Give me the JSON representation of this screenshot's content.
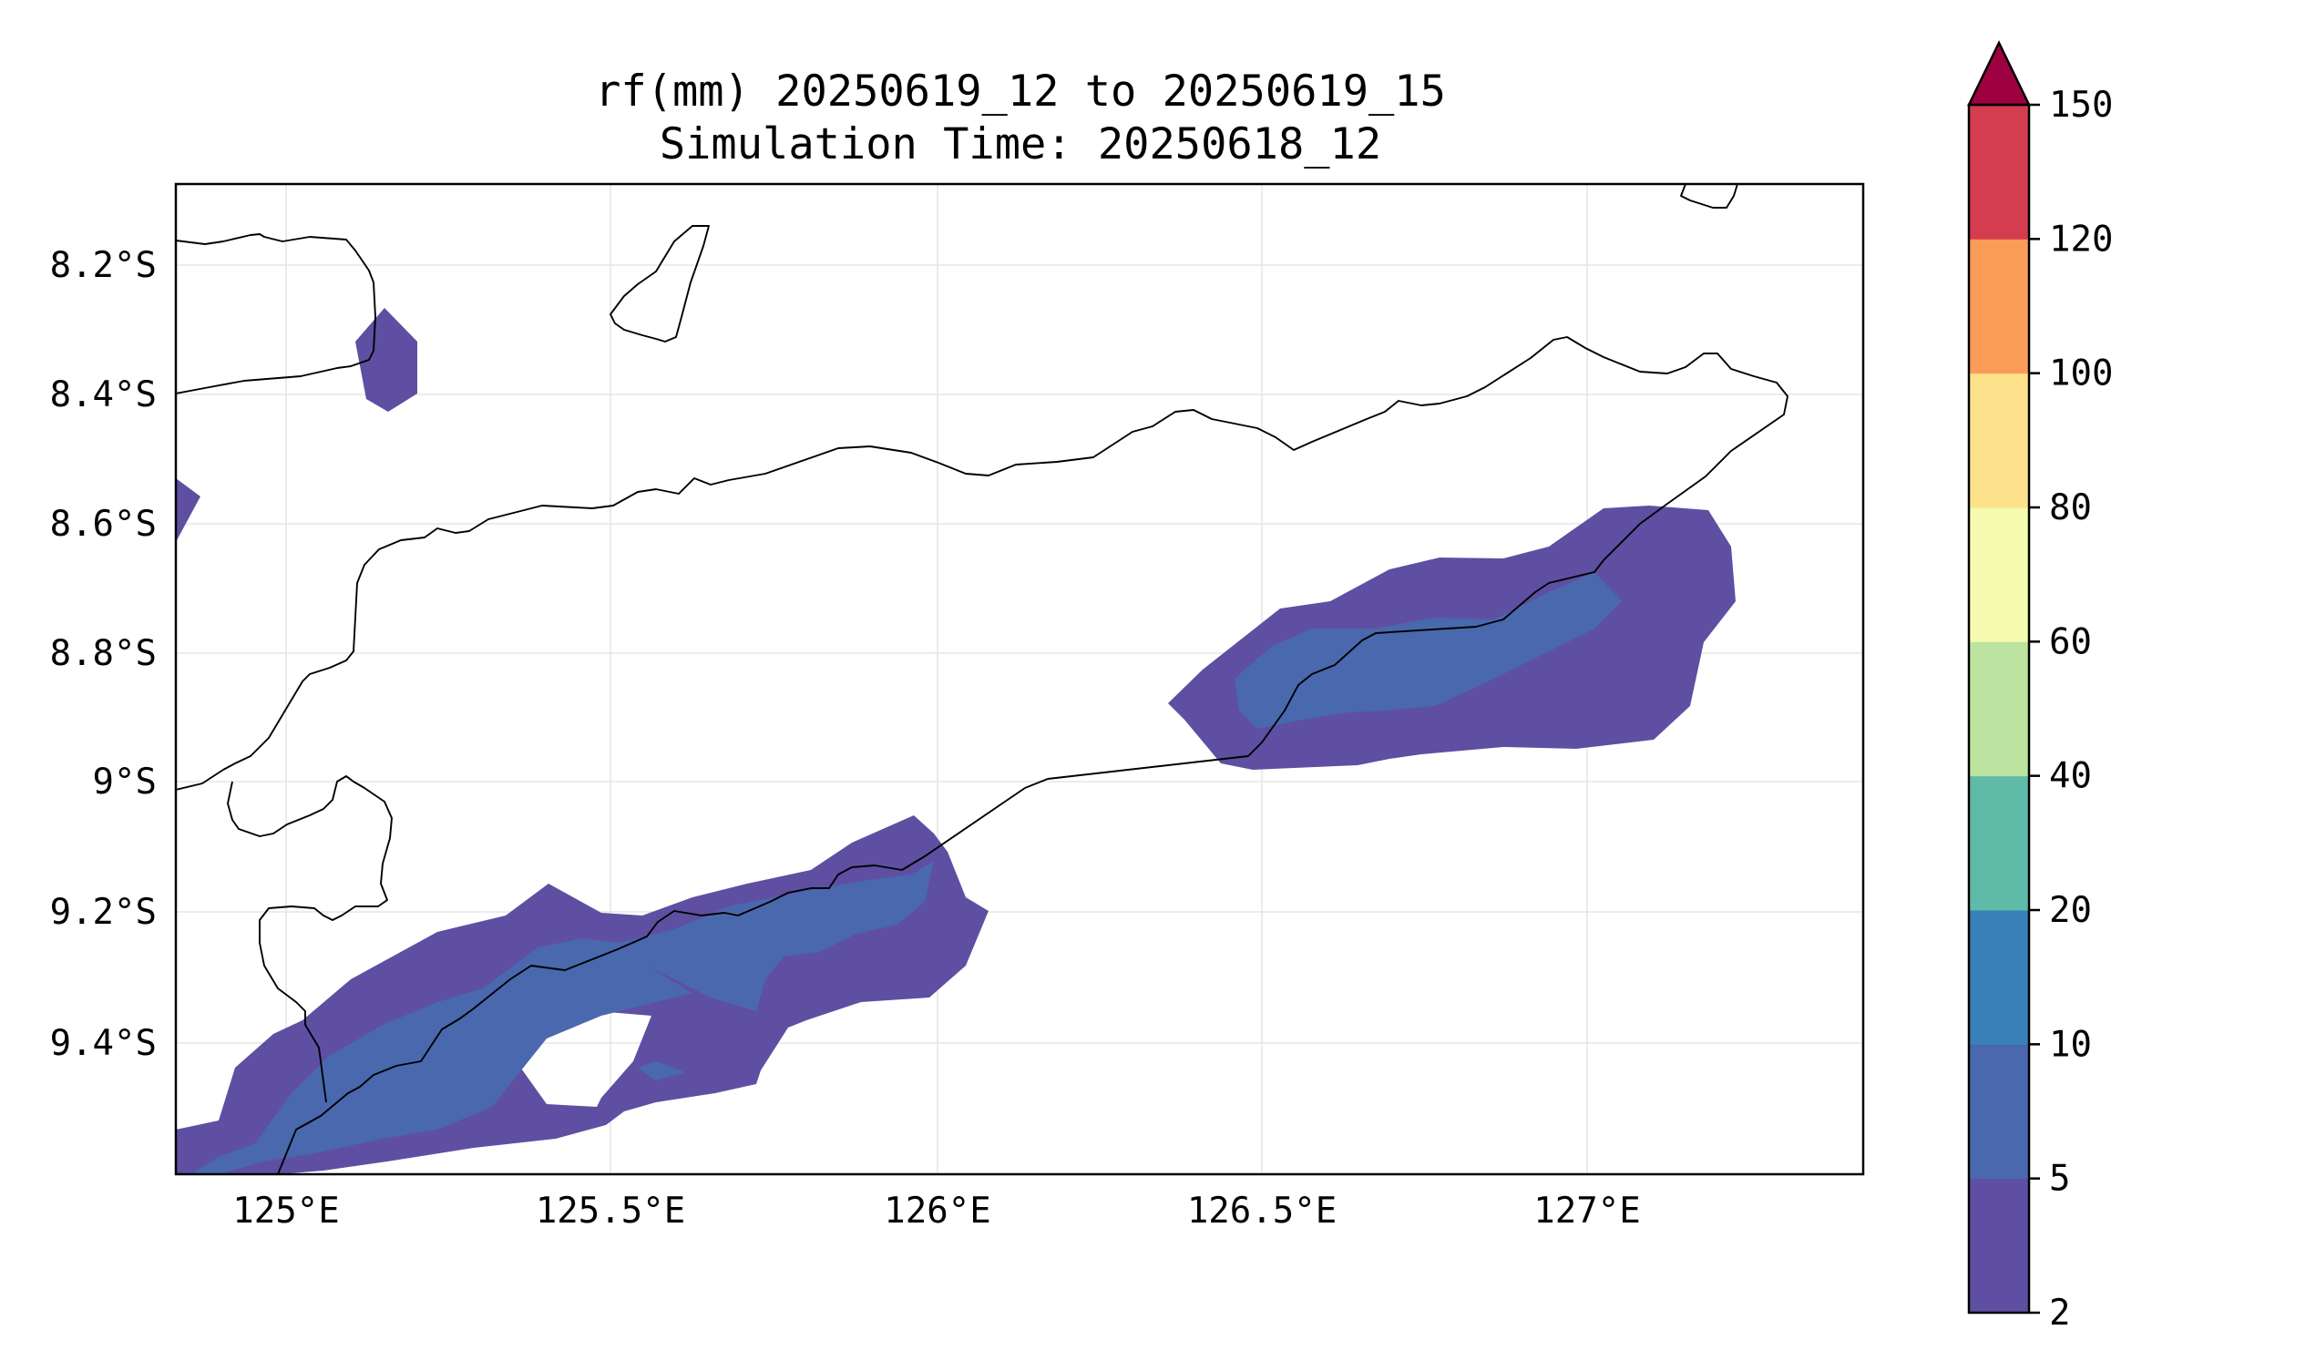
{
  "title": {
    "line1": "rf(mm) 20250619_12 to 20250619_15",
    "line2": "Simulation Time: 20250618_12"
  },
  "map": {
    "lon_range": [
      124.81,
      127.42
    ],
    "lat_range": [
      -9.58,
      -8.06
    ],
    "lon_ticks": [
      {
        "value": 125.0,
        "label": "125°E"
      },
      {
        "value": 125.5,
        "label": "125.5°E"
      },
      {
        "value": 126.0,
        "label": "126°E"
      },
      {
        "value": 126.5,
        "label": "126.5°E"
      },
      {
        "value": 127.0,
        "label": "127°E"
      }
    ],
    "lat_ticks": [
      {
        "value": -8.2,
        "label": "8.2°S"
      },
      {
        "value": -8.4,
        "label": "8.4°S"
      },
      {
        "value": -8.6,
        "label": "8.6°S"
      },
      {
        "value": -8.8,
        "label": "8.8°S"
      },
      {
        "value": -9.0,
        "label": "9°S"
      },
      {
        "value": -9.2,
        "label": "9.2°S"
      },
      {
        "value": -9.4,
        "label": "9.4°S"
      }
    ],
    "gridlines": true
  },
  "colorbar": {
    "levels": [
      "2",
      "5",
      "10",
      "20",
      "40",
      "60",
      "80",
      "100",
      "120",
      "150"
    ],
    "colors": [
      "#5e4fa2",
      "#4a68ae",
      "#3880b9",
      "#5fbaa8",
      "#bce4a0",
      "#f4faae",
      "#fde18b",
      "#fa9c58",
      "#d43d4f"
    ],
    "extend_color": "#9e0142",
    "extend": "max"
  },
  "colors": {
    "rain_2_5": "#5e4fa2",
    "rain_5_10": "#4a68ae",
    "coastline": "#000000"
  }
}
